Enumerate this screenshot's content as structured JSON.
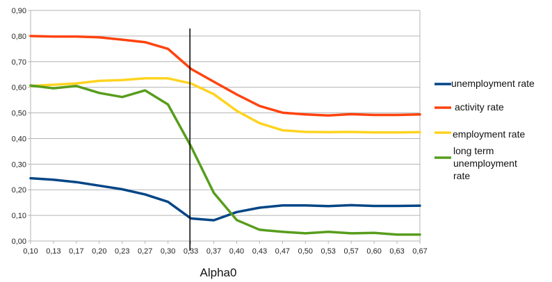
{
  "chart_data": {
    "type": "line",
    "title": "",
    "xlabel": "Alpha0",
    "ylabel": "",
    "ylim": [
      0,
      0.9
    ],
    "grid": true,
    "legend_position": "right",
    "categories": [
      "0,10",
      "0,13",
      "0,17",
      "0,20",
      "0,23",
      "0,27",
      "0,30",
      "0,33",
      "0,37",
      "0,40",
      "0,43",
      "0,47",
      "0,50",
      "0,53",
      "0,57",
      "0,60",
      "0,63",
      "0,67"
    ],
    "y_ticks": [
      "0,00",
      "0,10",
      "0,20",
      "0,30",
      "0,40",
      "0,50",
      "0,60",
      "0,70",
      "0,80",
      "0,90"
    ],
    "series": [
      {
        "name": "unemployment rate",
        "color": "#004586",
        "values": [
          0.245,
          0.239,
          0.23,
          0.216,
          0.202,
          0.182,
          0.153,
          0.088,
          0.081,
          0.113,
          0.13,
          0.139,
          0.139,
          0.136,
          0.14,
          0.137,
          0.137,
          0.138
        ]
      },
      {
        "name": "activity rate",
        "color": "#ff420e",
        "values": [
          0.8,
          0.798,
          0.798,
          0.795,
          0.786,
          0.776,
          0.75,
          0.672,
          0.622,
          0.572,
          0.527,
          0.501,
          0.494,
          0.49,
          0.495,
          0.492,
          0.492,
          0.494
        ]
      },
      {
        "name": "employment rate",
        "color": "#ffd320",
        "values": [
          0.605,
          0.61,
          0.615,
          0.625,
          0.628,
          0.635,
          0.635,
          0.615,
          0.573,
          0.508,
          0.46,
          0.432,
          0.426,
          0.425,
          0.426,
          0.424,
          0.424,
          0.425
        ]
      },
      {
        "name": "long term unemployment rate",
        "color": "#579d1c",
        "values": [
          0.607,
          0.596,
          0.605,
          0.578,
          0.562,
          0.588,
          0.533,
          0.37,
          0.188,
          0.082,
          0.044,
          0.036,
          0.03,
          0.036,
          0.03,
          0.032,
          0.025,
          0.025
        ]
      }
    ],
    "vertical_marker": {
      "x": 0.3333,
      "color": "#000000"
    },
    "x_range": [
      0.1,
      0.67
    ]
  },
  "legend": {
    "items": [
      {
        "label_lines": [
          "unemployment rate"
        ]
      },
      {
        "label_lines": [
          "activity rate"
        ]
      },
      {
        "label_lines": [
          "employment rate"
        ]
      },
      {
        "label_lines": [
          "long term",
          "unemployment",
          "rate"
        ]
      }
    ]
  }
}
